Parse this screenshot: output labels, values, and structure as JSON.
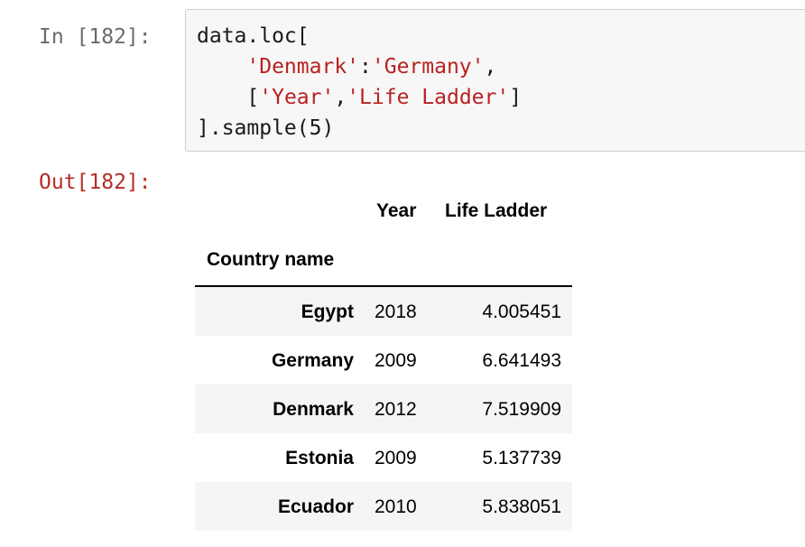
{
  "cell": {
    "in_prompt": "In [182]:",
    "out_prompt": "Out[182]:",
    "code": {
      "line1": "data.loc[",
      "line2_indent": "    ",
      "line2_str1": "'Denmark'",
      "line2_colon": ":",
      "line2_str2": "'Germany'",
      "line2_comma": ",",
      "line3_indent": "    ",
      "line3_open": "[",
      "line3_str1": "'Year'",
      "line3_comma": ",",
      "line3_str2": "'Life Ladder'",
      "line3_close": "]",
      "line4_pre": "].sample(",
      "line4_num": "5",
      "line4_post": ")"
    }
  },
  "dataframe": {
    "columns": [
      "Year",
      "Life Ladder"
    ],
    "index_name": "Country name",
    "rows": [
      {
        "index": "Egypt",
        "year": "2018",
        "ladder": "4.005451"
      },
      {
        "index": "Germany",
        "year": "2009",
        "ladder": "6.641493"
      },
      {
        "index": "Denmark",
        "year": "2012",
        "ladder": "7.519909"
      },
      {
        "index": "Estonia",
        "year": "2009",
        "ladder": "5.137739"
      },
      {
        "index": "Ecuador",
        "year": "2010",
        "ladder": "5.838051"
      }
    ]
  },
  "colors": {
    "in_prompt": "#6b6b6b",
    "out_prompt": "#b42e2a",
    "string_literal": "#ba2121",
    "stripe": "#f5f5f5"
  }
}
